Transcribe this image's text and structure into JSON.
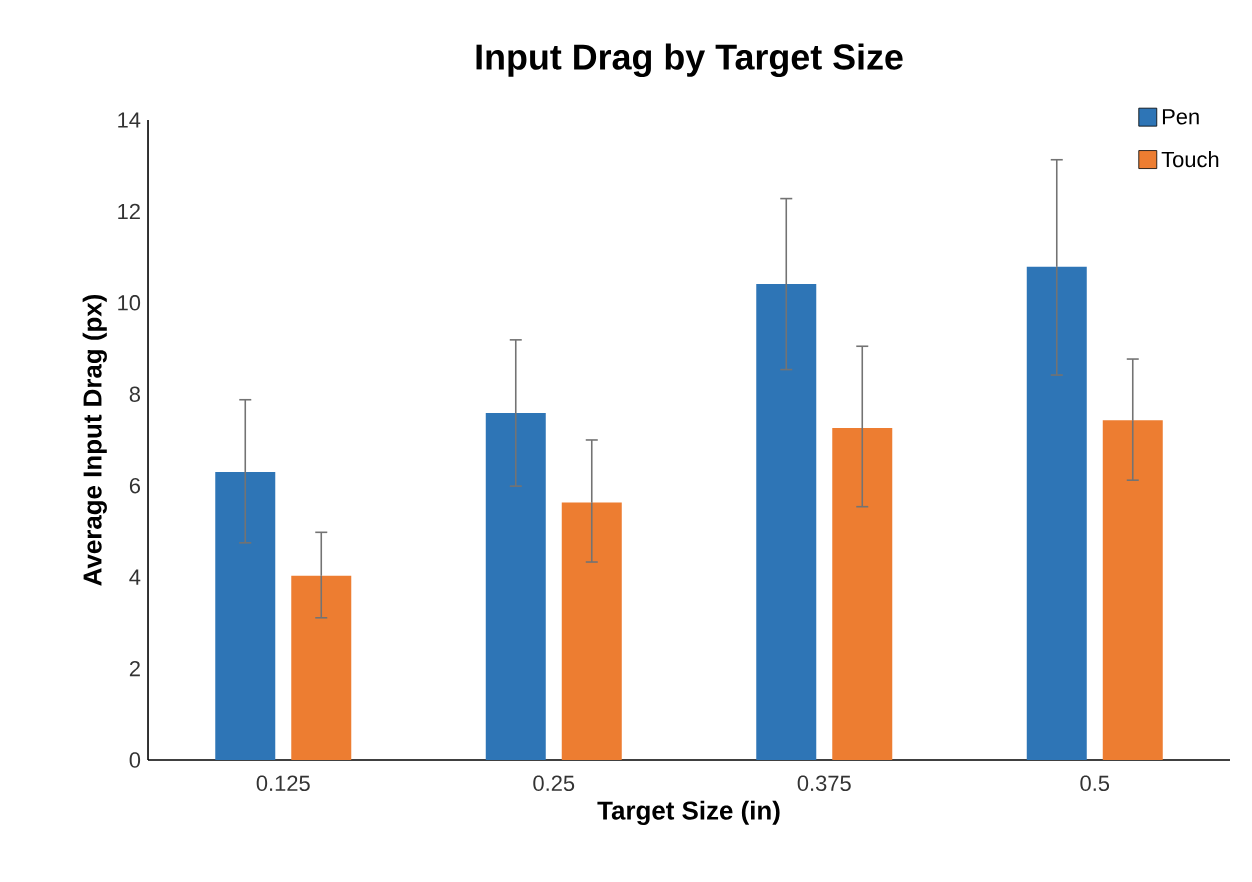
{
  "chart_data": {
    "type": "bar",
    "title": "Input Drag by Target Size",
    "xlabel": "Target Size (in)",
    "ylabel": "Average Input Drag (px)",
    "categories": [
      "0.125",
      "0.25",
      "0.375",
      "0.5"
    ],
    "series": [
      {
        "name": "Pen",
        "color": "#2e75b6",
        "values": [
          6.3,
          7.59,
          10.41,
          10.79
        ],
        "errors": [
          [
            4.75,
            7.88
          ],
          [
            5.99,
            9.19
          ],
          [
            8.54,
            12.28
          ],
          [
            8.42,
            13.13
          ]
        ]
      },
      {
        "name": "Touch",
        "color": "#ed7d31",
        "values": [
          4.03,
          5.63,
          7.26,
          7.43
        ],
        "errors": [
          [
            3.11,
            4.98
          ],
          [
            4.33,
            7.0
          ],
          [
            5.54,
            9.05
          ],
          [
            6.12,
            8.77
          ]
        ]
      }
    ],
    "ylim": [
      0,
      14
    ],
    "yticks": [
      0,
      2,
      4,
      6,
      8,
      10,
      12,
      14
    ],
    "grid": false,
    "legend": "top right"
  }
}
